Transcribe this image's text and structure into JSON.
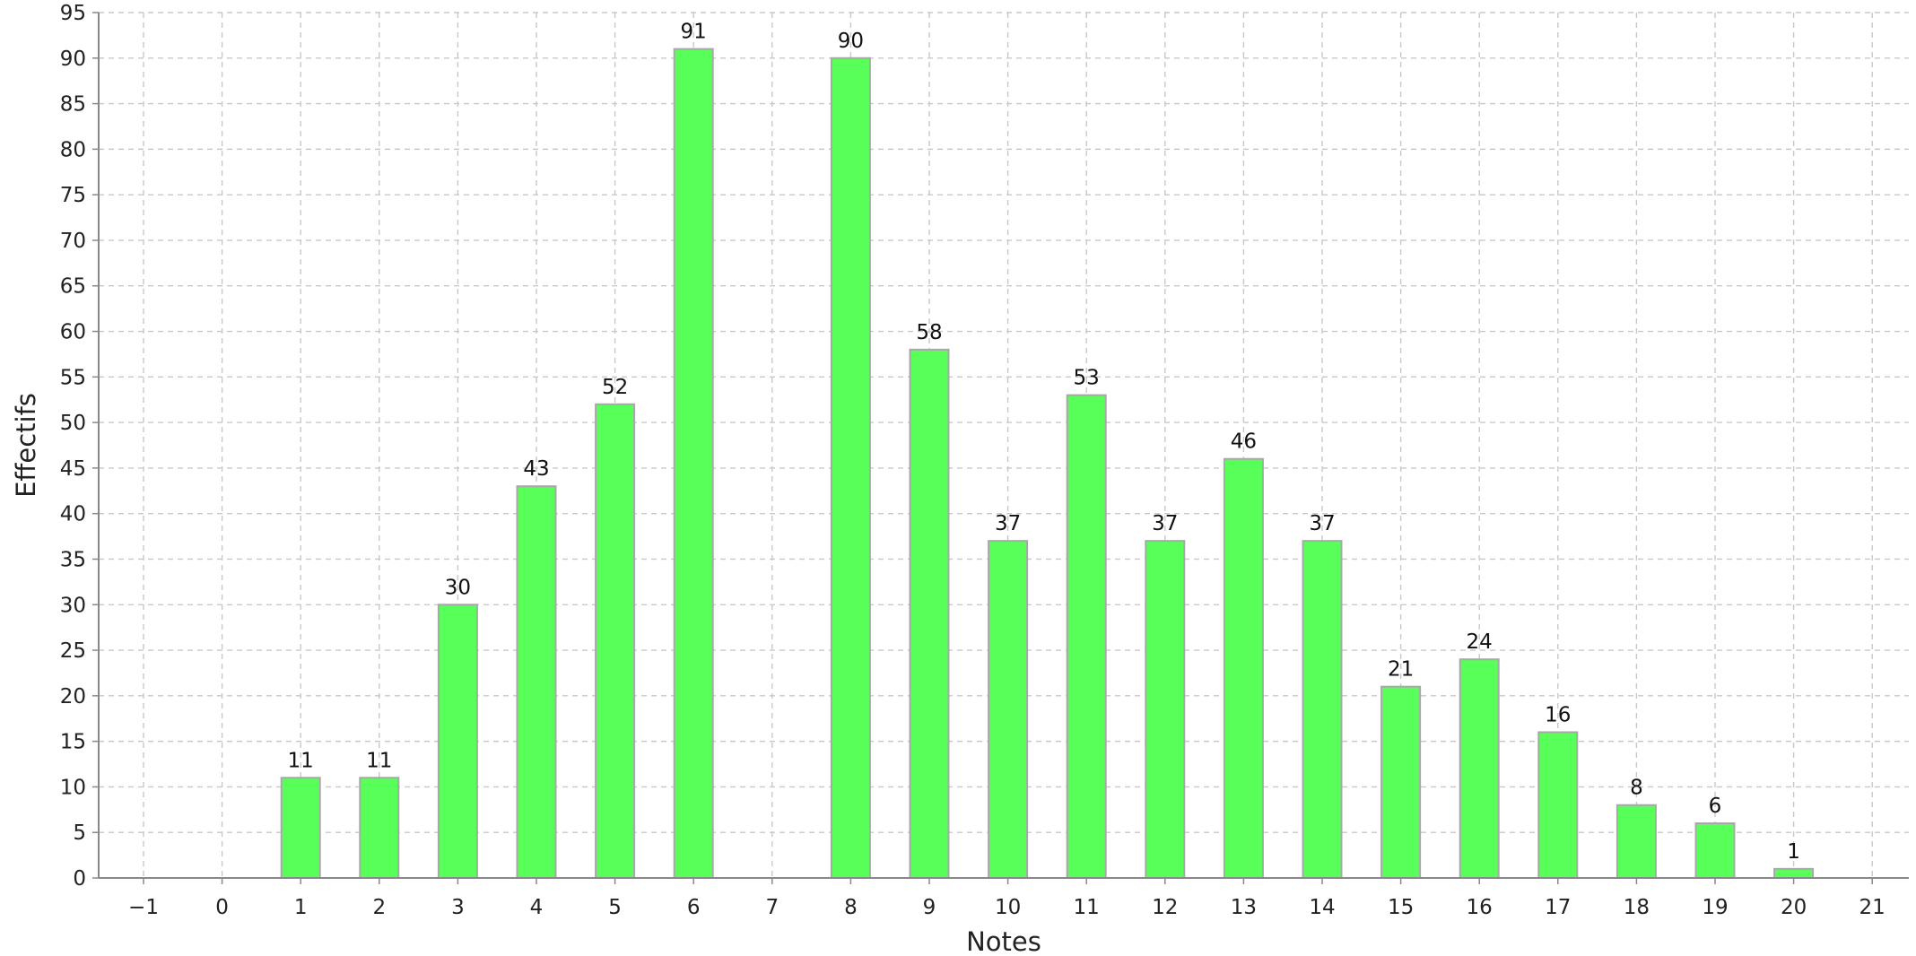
{
  "chart_data": {
    "type": "bar",
    "xlabel": "Notes",
    "ylabel": "Effectifs",
    "categories": [
      "-1",
      "0",
      "1",
      "2",
      "3",
      "4",
      "5",
      "6",
      "7",
      "8",
      "9",
      "10",
      "11",
      "12",
      "13",
      "14",
      "15",
      "16",
      "17",
      "18",
      "19",
      "20",
      "21"
    ],
    "tick_labels": [
      "−1",
      "0",
      "1",
      "2",
      "3",
      "4",
      "5",
      "6",
      "7",
      "8",
      "9",
      "10",
      "11",
      "12",
      "13",
      "14",
      "15",
      "16",
      "17",
      "18",
      "19",
      "20",
      "21"
    ],
    "values": [
      0,
      0,
      11,
      11,
      30,
      43,
      52,
      91,
      0,
      90,
      58,
      37,
      53,
      37,
      46,
      37,
      21,
      24,
      16,
      8,
      6,
      1,
      0
    ],
    "data_labels": [
      "",
      "",
      "11",
      "11",
      "30",
      "43",
      "52",
      "91",
      "",
      "90",
      "58",
      "37",
      "53",
      "37",
      "46",
      "37",
      "21",
      "24",
      "16",
      "8",
      "6",
      "1",
      ""
    ],
    "ylim": [
      0,
      95
    ],
    "yticks": [
      0,
      5,
      10,
      15,
      20,
      25,
      30,
      35,
      40,
      45,
      50,
      55,
      60,
      65,
      70,
      75,
      80,
      85,
      90,
      95
    ],
    "grid": true,
    "legend": "none",
    "colors": {
      "bar_fill": "#58ff58",
      "bar_stroke": "#a8a8a8",
      "grid": "#c8c8c8",
      "axis": "#888888"
    }
  }
}
